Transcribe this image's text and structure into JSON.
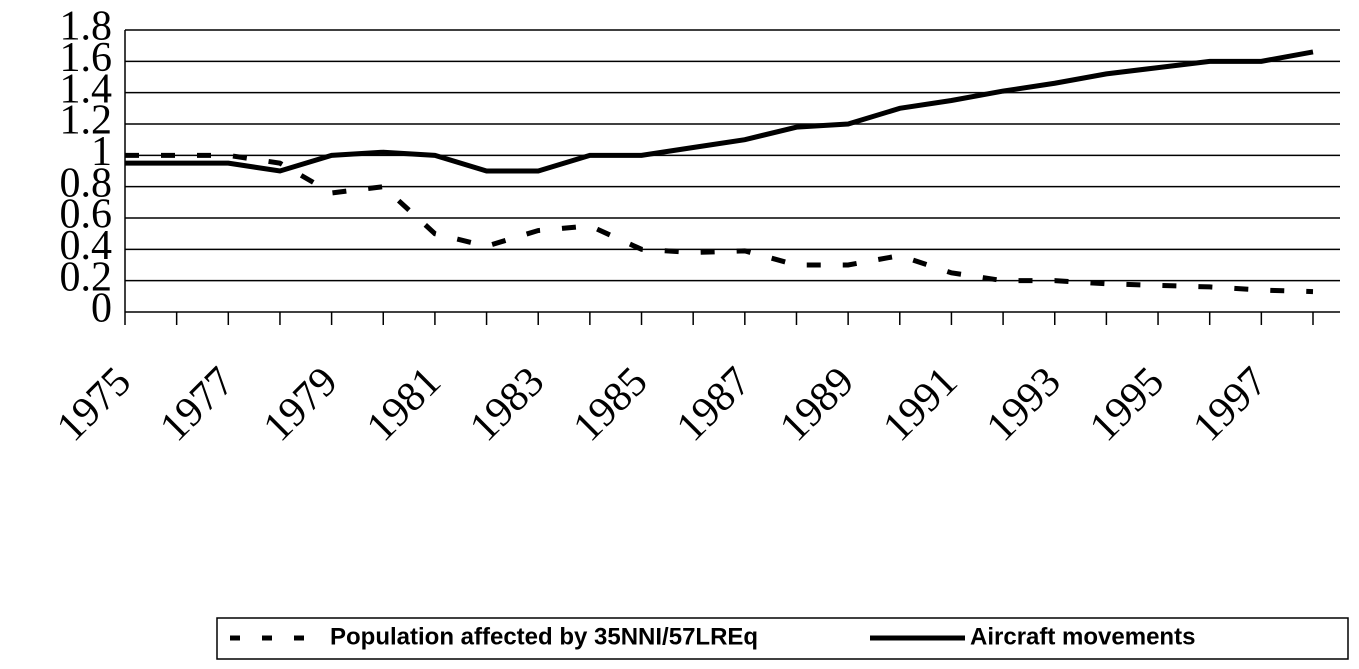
{
  "chart_data": {
    "type": "line",
    "categories": [
      "1975",
      null,
      "1977",
      null,
      "1979",
      null,
      "1981",
      null,
      "1983",
      null,
      "1985",
      null,
      "1987",
      null,
      "1989",
      null,
      "1991",
      null,
      "1993",
      null,
      "1995",
      null,
      "1997",
      null
    ],
    "series": [
      {
        "name": "Population affected by 35NNI/57LREq",
        "color": "#000000",
        "dash": true,
        "values": [
          1.0,
          1.0,
          1.0,
          0.95,
          0.76,
          0.8,
          0.5,
          0.42,
          0.52,
          0.55,
          0.4,
          0.38,
          0.39,
          0.3,
          0.3,
          0.36,
          0.25,
          0.2,
          0.2,
          0.18,
          0.17,
          0.16,
          0.14,
          0.13
        ]
      },
      {
        "name": "Aircraft movements",
        "color": "#000000",
        "dash": false,
        "values": [
          0.95,
          0.95,
          0.95,
          0.9,
          1.0,
          1.02,
          1.0,
          0.9,
          0.9,
          1.0,
          1.0,
          1.05,
          1.1,
          1.18,
          1.2,
          1.3,
          1.35,
          1.41,
          1.46,
          1.52,
          1.56,
          1.6,
          1.6,
          1.66
        ]
      }
    ],
    "ylim": [
      0,
      1.8
    ],
    "yticks": [
      0,
      0.2,
      0.4,
      0.6,
      0.8,
      1,
      1.2,
      1.4,
      1.6,
      1.8
    ],
    "grid": true,
    "legend": "bottom"
  }
}
